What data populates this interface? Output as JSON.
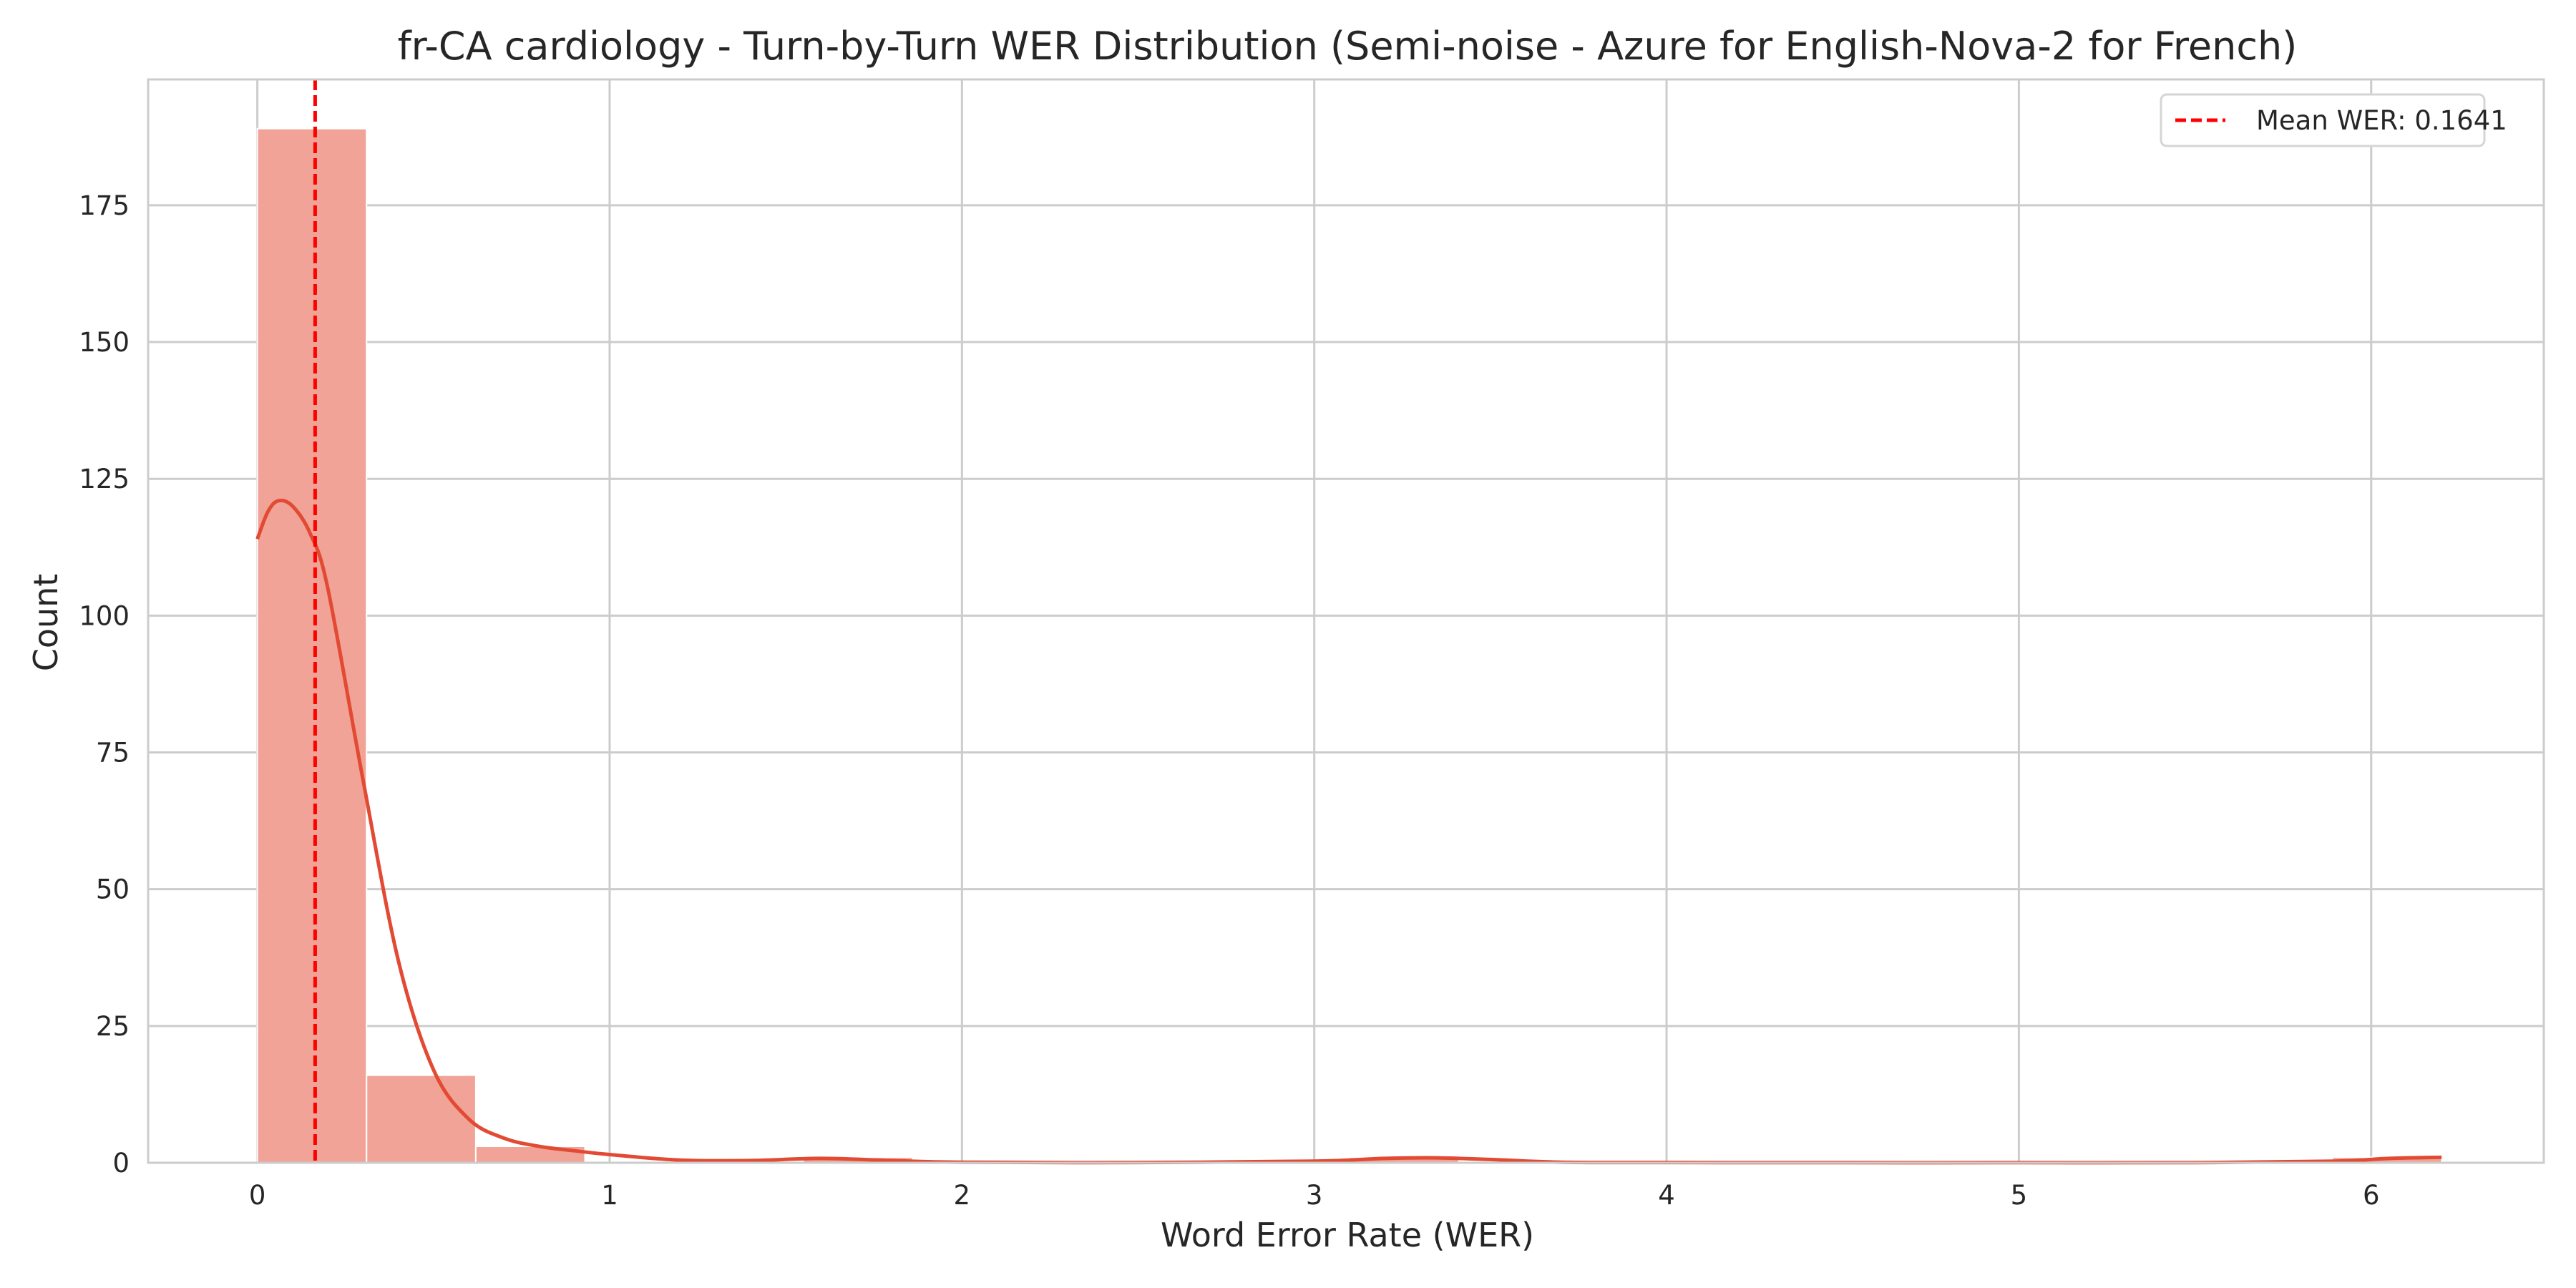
{
  "chart_data": {
    "type": "histogram",
    "title": "fr-CA cardiology - Turn-by-Turn WER Distribution (Semi-noise - Azure for English-Nova-2 for French)",
    "xlabel": "Word Error Rate (WER)",
    "ylabel": "Count",
    "xlim": [
      -0.31,
      6.49
    ],
    "ylim": [
      0,
      198
    ],
    "x_ticks": [
      0,
      1,
      2,
      3,
      4,
      5,
      6
    ],
    "x_tick_labels": [
      "0",
      "1",
      "2",
      "3",
      "4",
      "5",
      "6"
    ],
    "y_ticks": [
      0,
      25,
      50,
      75,
      100,
      125,
      150,
      175
    ],
    "y_tick_labels": [
      "0",
      "25",
      "50",
      "75",
      "100",
      "125",
      "150",
      "175"
    ],
    "grid": true,
    "legend_position": "top-right",
    "bar_color": "#f0a396",
    "kde_color": "#e24a33",
    "mean_line_color": "#ff0000",
    "bins": [
      {
        "x0": 0.0,
        "x1": 0.31,
        "count": 189
      },
      {
        "x0": 0.31,
        "x1": 0.62,
        "count": 16
      },
      {
        "x0": 0.62,
        "x1": 0.93,
        "count": 3
      },
      {
        "x0": 0.93,
        "x1": 1.24,
        "count": 0
      },
      {
        "x0": 1.24,
        "x1": 1.55,
        "count": 0
      },
      {
        "x0": 1.55,
        "x1": 1.86,
        "count": 1
      },
      {
        "x0": 1.86,
        "x1": 2.17,
        "count": 0
      },
      {
        "x0": 2.17,
        "x1": 2.48,
        "count": 0
      },
      {
        "x0": 2.48,
        "x1": 2.79,
        "count": 0
      },
      {
        "x0": 2.79,
        "x1": 3.1,
        "count": 0
      },
      {
        "x0": 3.1,
        "x1": 3.41,
        "count": 1
      },
      {
        "x0": 3.41,
        "x1": 3.72,
        "count": 0
      },
      {
        "x0": 3.72,
        "x1": 4.03,
        "count": 0
      },
      {
        "x0": 4.03,
        "x1": 4.34,
        "count": 0
      },
      {
        "x0": 4.34,
        "x1": 4.65,
        "count": 0
      },
      {
        "x0": 4.65,
        "x1": 4.96,
        "count": 0
      },
      {
        "x0": 4.96,
        "x1": 5.27,
        "count": 0
      },
      {
        "x0": 5.27,
        "x1": 5.58,
        "count": 0
      },
      {
        "x0": 5.58,
        "x1": 5.89,
        "count": 0
      },
      {
        "x0": 5.89,
        "x1": 6.2,
        "count": 1
      }
    ],
    "kde_curve": {
      "x": [
        0.0,
        0.03,
        0.06,
        0.1,
        0.15,
        0.2,
        0.3,
        0.4,
        0.5,
        0.6,
        0.7,
        0.8,
        0.9,
        1.0,
        1.2,
        1.4,
        1.6,
        1.8,
        2.0,
        2.5,
        3.0,
        3.2,
        3.35,
        3.5,
        3.7,
        4.0,
        4.5,
        5.0,
        5.5,
        5.9,
        6.05,
        6.2
      ],
      "y": [
        114,
        119,
        121,
        120,
        115,
        105,
        70,
        37,
        17,
        8,
        4.5,
        3,
        2.2,
        1.5,
        0.5,
        0.4,
        0.8,
        0.4,
        0.1,
        0.05,
        0.3,
        0.8,
        0.9,
        0.6,
        0.1,
        0.05,
        0.02,
        0.02,
        0.02,
        0.3,
        0.8,
        1.0
      ]
    },
    "mean_wer": 0.1641,
    "legend": [
      {
        "label": "Mean WER: 0.1641",
        "style": "dashed",
        "color": "#ff0000"
      }
    ]
  }
}
